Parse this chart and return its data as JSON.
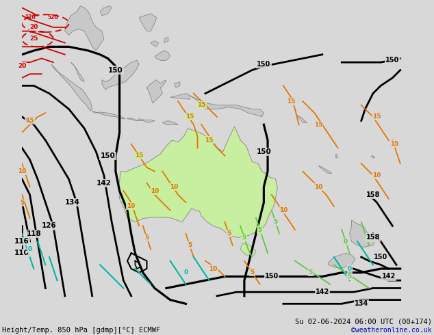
{
  "title_left": "Height/Temp. 850 hPa [gdmp][°C] ECMWF",
  "title_right": "Su 02-06-2024 06:00 UTC (00+174)",
  "credit": "©weatheronline.co.uk",
  "bg_color": "#d0d0d0",
  "land_gray": "#c8c8c8",
  "australia_green": "#c8eea0",
  "ocean_color": "#d8d8d8",
  "fig_width": 6.34,
  "fig_height": 4.9,
  "dpi": 100,
  "credit_color": "#0000bb",
  "lon_min": 88,
  "lon_max": 188,
  "lat_min": -58,
  "lat_max": 22,
  "black_lw": 2.0,
  "orange_lw": 1.3,
  "cyan_lw": 1.5,
  "green_lw": 1.3,
  "red_lw": 1.3
}
